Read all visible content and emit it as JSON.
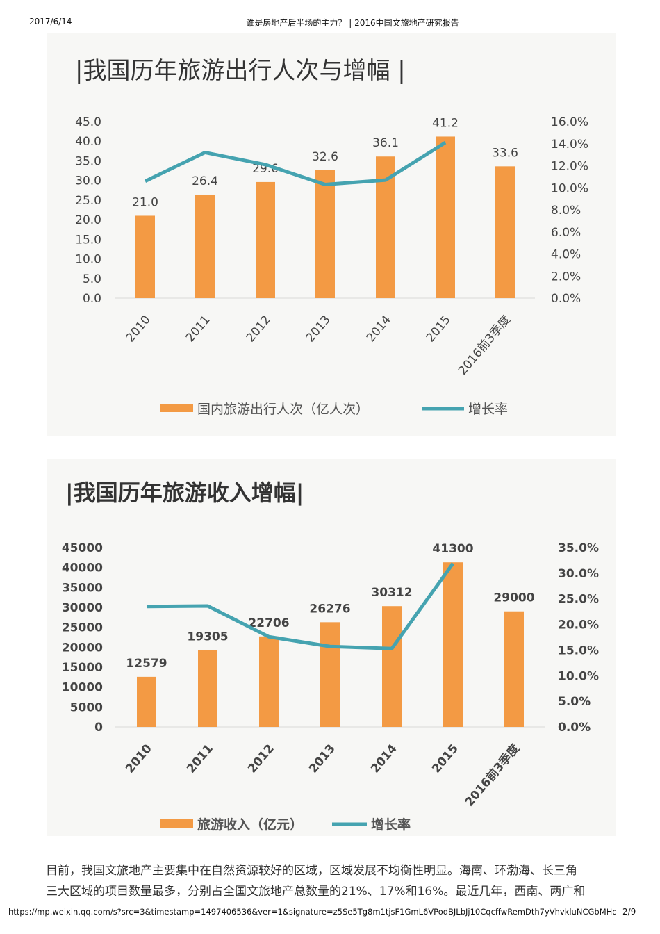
{
  "header": {
    "date": "2017/6/14",
    "title": "谁是房地产后半场的主力？ | 2016中国文旅地产研究报告"
  },
  "footer": {
    "url": "https://mp.weixin.qq.com/s?src=3&timestamp=1497406536&ver=1&signature=z5Se5Tg8m1tjsF1GmL6VPodBJLbJj10CqcffwRemDth7yVhvkluNCGbMHqH...",
    "page": "2/9"
  },
  "paragraph": [
    "目前，我国文旅地产主要集中在自然资源较好的区域，区域发展不均衡性明显。海南、环渤海、长三角",
    "三大区域的项目数量最多，分别占全国文旅地产总数量的21%、17%和16%。最近几年，西南、两广和"
  ],
  "colors": {
    "bar": "#f39a44",
    "line": "#45a3b0"
  },
  "chart_data": [
    {
      "type": "bar",
      "title": "|我国历年旅游出行人次与增幅 |",
      "categories": [
        "2010",
        "2011",
        "2012",
        "2013",
        "2014",
        "2015",
        "2016前3季度"
      ],
      "series": [
        {
          "name": "国内旅游出行人次（亿人次）",
          "type": "bar",
          "axis": "left",
          "values": [
            21.0,
            26.4,
            29.6,
            32.6,
            36.1,
            41.2,
            33.6
          ],
          "labels": [
            "21.0",
            "26.4",
            "29.6",
            "32.6",
            "36.1",
            "41.2",
            "33.6"
          ]
        },
        {
          "name": "增长率",
          "type": "line",
          "axis": "right",
          "values": [
            10.6,
            13.2,
            12.1,
            10.3,
            10.7,
            14.1,
            null
          ]
        }
      ],
      "ylim": [
        0,
        45
      ],
      "yticks": [
        "0.0",
        "5.0",
        "10.0",
        "15.0",
        "20.0",
        "25.0",
        "30.0",
        "35.0",
        "40.0",
        "45.0"
      ],
      "y2lim": [
        0,
        16
      ],
      "y2ticks": [
        "0.0%",
        "2.0%",
        "4.0%",
        "6.0%",
        "8.0%",
        "10.0%",
        "12.0%",
        "14.0%",
        "16.0%"
      ],
      "legend": "bottom",
      "grid": false,
      "bold": false
    },
    {
      "type": "bar",
      "title": "|我国历年旅游收入增幅|",
      "categories": [
        "2010",
        "2011",
        "2012",
        "2013",
        "2014",
        "2015",
        "2016前3季度"
      ],
      "series": [
        {
          "name": "旅游收入（亿元）",
          "type": "bar",
          "axis": "left",
          "values": [
            12579,
            19305,
            22706,
            26276,
            30312,
            41300,
            29000
          ],
          "labels": [
            "12579",
            "19305",
            "22706",
            "26276",
            "30312",
            "41300",
            "29000"
          ]
        },
        {
          "name": "增长率",
          "type": "line",
          "axis": "right",
          "values": [
            23.5,
            23.6,
            17.6,
            15.7,
            15.3,
            31.9,
            null
          ]
        }
      ],
      "ylim": [
        0,
        45000
      ],
      "yticks": [
        "0",
        "5000",
        "10000",
        "15000",
        "20000",
        "25000",
        "30000",
        "35000",
        "40000",
        "45000"
      ],
      "y2lim": [
        0,
        35
      ],
      "y2ticks": [
        "0.0%",
        "5.0%",
        "10.0%",
        "15.0%",
        "20.0%",
        "25.0%",
        "30.0%",
        "35.0%"
      ],
      "legend": "bottom",
      "grid": false,
      "bold": true
    }
  ]
}
